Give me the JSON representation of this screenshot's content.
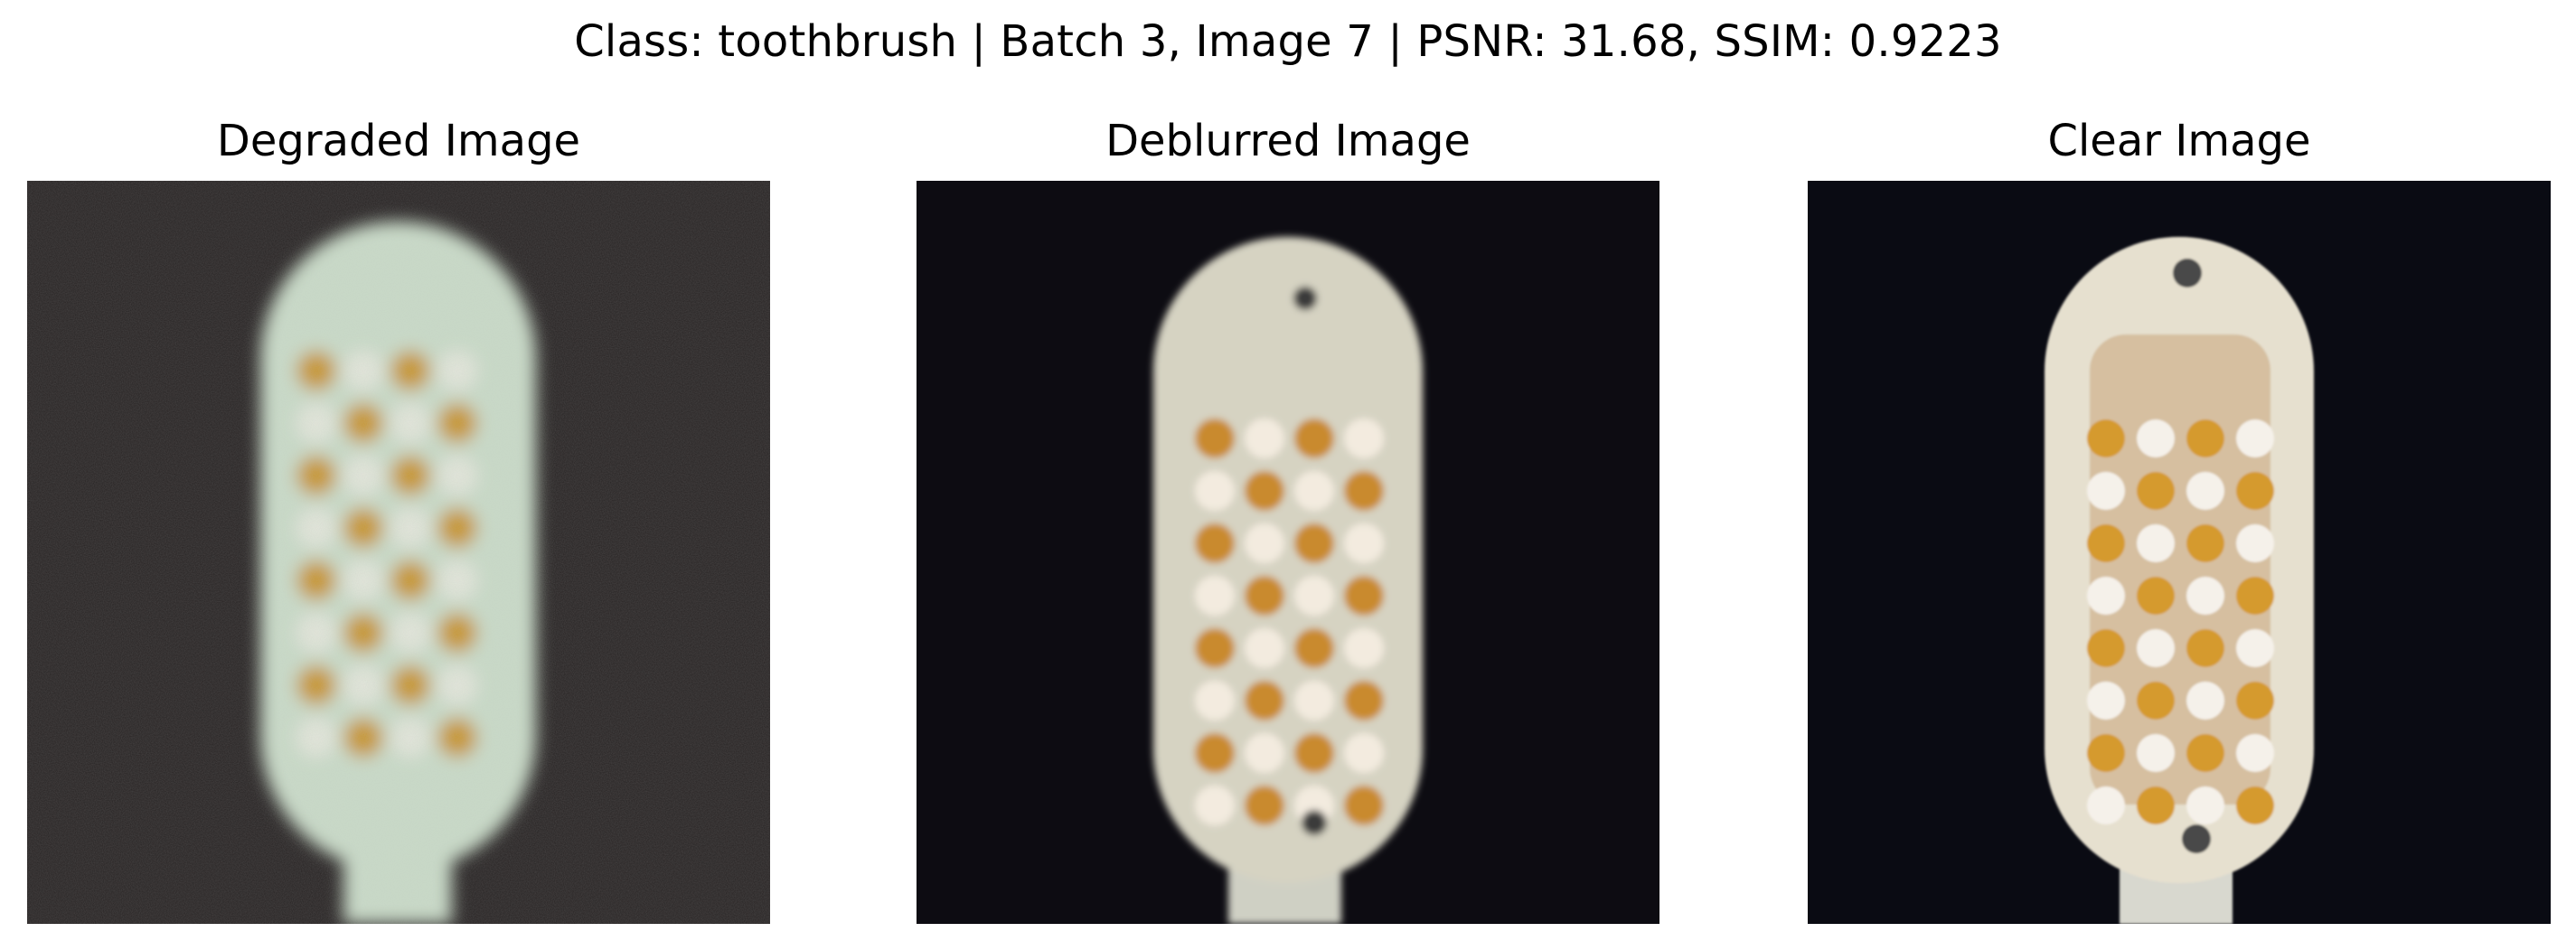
{
  "figure": {
    "title": "Class: toothbrush | Batch 3, Image 7 | PSNR: 31.68, SSIM: 0.9223"
  },
  "panels": [
    {
      "title": "Degraded Image",
      "background": "#262222",
      "head": "#c9dbc8",
      "tuft": "#c8962e",
      "gap": "#e2e6da"
    },
    {
      "title": "Deblurred Image",
      "background": "#0d0c12",
      "head": "#d6d3c2",
      "tuft": "#c98a2d",
      "gap": "#f3ebdf"
    },
    {
      "title": "Clear Image",
      "background": "#0a0b13",
      "head": "#e6e0cf",
      "tuft": "#d59a2e",
      "gap": "#f5f1ea"
    }
  ]
}
